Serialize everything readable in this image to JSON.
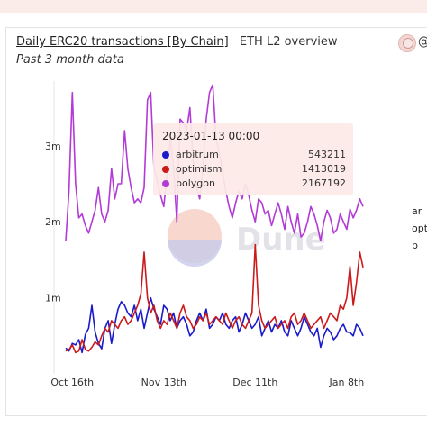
{
  "header": {
    "title": "Daily ERC20 transactions [By Chain]",
    "subtitle": "ETH L2 overview",
    "description": "Past 3 month data",
    "handle": "@"
  },
  "side_labels": [
    "ar",
    "opt",
    "p"
  ],
  "watermark": "Dune",
  "tooltip": {
    "date": "2023-01-13 00:00",
    "rows": [
      {
        "name": "arbitrum",
        "value": "543211",
        "color": "#1a1acc"
      },
      {
        "name": "optimism",
        "value": "1413019",
        "color": "#cc1a1a"
      },
      {
        "name": "polygon",
        "value": "2167192",
        "color": "#b23ad6"
      }
    ]
  },
  "chart_data": {
    "type": "line",
    "title": "Daily ERC20 transactions [By Chain]",
    "x_tick_labels": [
      "Oct 16th",
      "Nov 13th",
      "Dec 11th",
      "Jan 8th"
    ],
    "y_tick_labels": [
      "1m",
      "2m",
      "3m"
    ],
    "ylim": [
      0,
      3850000
    ],
    "grid": false,
    "x_days": 92,
    "series": [
      {
        "name": "arbitrum",
        "color": "#1a1acc",
        "values": [
          340000,
          300000,
          400000,
          380000,
          450000,
          280000,
          520000,
          600000,
          900000,
          550000,
          400000,
          330000,
          600000,
          700000,
          400000,
          650000,
          850000,
          950000,
          900000,
          800000,
          750000,
          900000,
          700000,
          850000,
          600000,
          800000,
          1000000,
          850000,
          750000,
          650000,
          900000,
          850000,
          700000,
          800000,
          600000,
          700000,
          750000,
          650000,
          500000,
          550000,
          700000,
          800000,
          700000,
          850000,
          600000,
          650000,
          750000,
          700000,
          800000,
          650000,
          600000,
          700000,
          750000,
          550000,
          650000,
          800000,
          700000,
          600000,
          650000,
          750000,
          500000,
          600000,
          700000,
          550000,
          650000,
          600000,
          700000,
          550000,
          500000,
          700000,
          600000,
          500000,
          600000,
          750000,
          650000,
          550000,
          500000,
          600000,
          350000,
          500000,
          600000,
          550000,
          450000,
          500000,
          600000,
          650000,
          550000,
          543211,
          500000,
          650000,
          600000,
          500000
        ]
      },
      {
        "name": "optimism",
        "color": "#cc1a1a",
        "values": [
          300000,
          320000,
          380000,
          280000,
          300000,
          450000,
          320000,
          300000,
          350000,
          420000,
          380000,
          500000,
          600000,
          550000,
          700000,
          650000,
          600000,
          700000,
          750000,
          650000,
          700000,
          800000,
          900000,
          1050000,
          1600000,
          1000000,
          800000,
          900000,
          700000,
          600000,
          700000,
          650000,
          800000,
          700000,
          600000,
          800000,
          900000,
          750000,
          700000,
          600000,
          650000,
          750000,
          700000,
          800000,
          650000,
          700000,
          750000,
          700000,
          650000,
          800000,
          700000,
          600000,
          700000,
          750000,
          650000,
          600000,
          700000,
          800000,
          1700000,
          900000,
          700000,
          600000,
          650000,
          700000,
          750000,
          600000,
          650000,
          700000,
          600000,
          750000,
          800000,
          650000,
          700000,
          800000,
          700000,
          600000,
          650000,
          700000,
          750000,
          600000,
          700000,
          800000,
          750000,
          700000,
          900000,
          850000,
          1000000,
          1413019,
          900000,
          1200000,
          1600000,
          1400000
        ]
      },
      {
        "name": "polygon",
        "color": "#b23ad6",
        "values": [
          1750000,
          2400000,
          3700000,
          2500000,
          2050000,
          2100000,
          1950000,
          1850000,
          2000000,
          2150000,
          2450000,
          2100000,
          2000000,
          2150000,
          2700000,
          2300000,
          2500000,
          2500000,
          3200000,
          2700000,
          2450000,
          2250000,
          2300000,
          2250000,
          2450000,
          3600000,
          3700000,
          2700000,
          2550000,
          2350000,
          2200000,
          2600000,
          3100000,
          2700000,
          2000000,
          3350000,
          3300000,
          3200000,
          3500000,
          2800000,
          2450000,
          2300000,
          2700000,
          3350000,
          3700000,
          3800000,
          3100000,
          2900000,
          2650000,
          2400000,
          2200000,
          2050000,
          2250000,
          2400000,
          2300000,
          2500000,
          2350000,
          2150000,
          2000000,
          2300000,
          2250000,
          2100000,
          2150000,
          1950000,
          2100000,
          2250000,
          2100000,
          1900000,
          2200000,
          2000000,
          1850000,
          2100000,
          1800000,
          1850000,
          2000000,
          2200000,
          2100000,
          1950000,
          1750000,
          2000000,
          2150000,
          2050000,
          1850000,
          1900000,
          2100000,
          2000000,
          1900000,
          2167192,
          2050000,
          2150000,
          2300000,
          2200000
        ]
      }
    ]
  }
}
